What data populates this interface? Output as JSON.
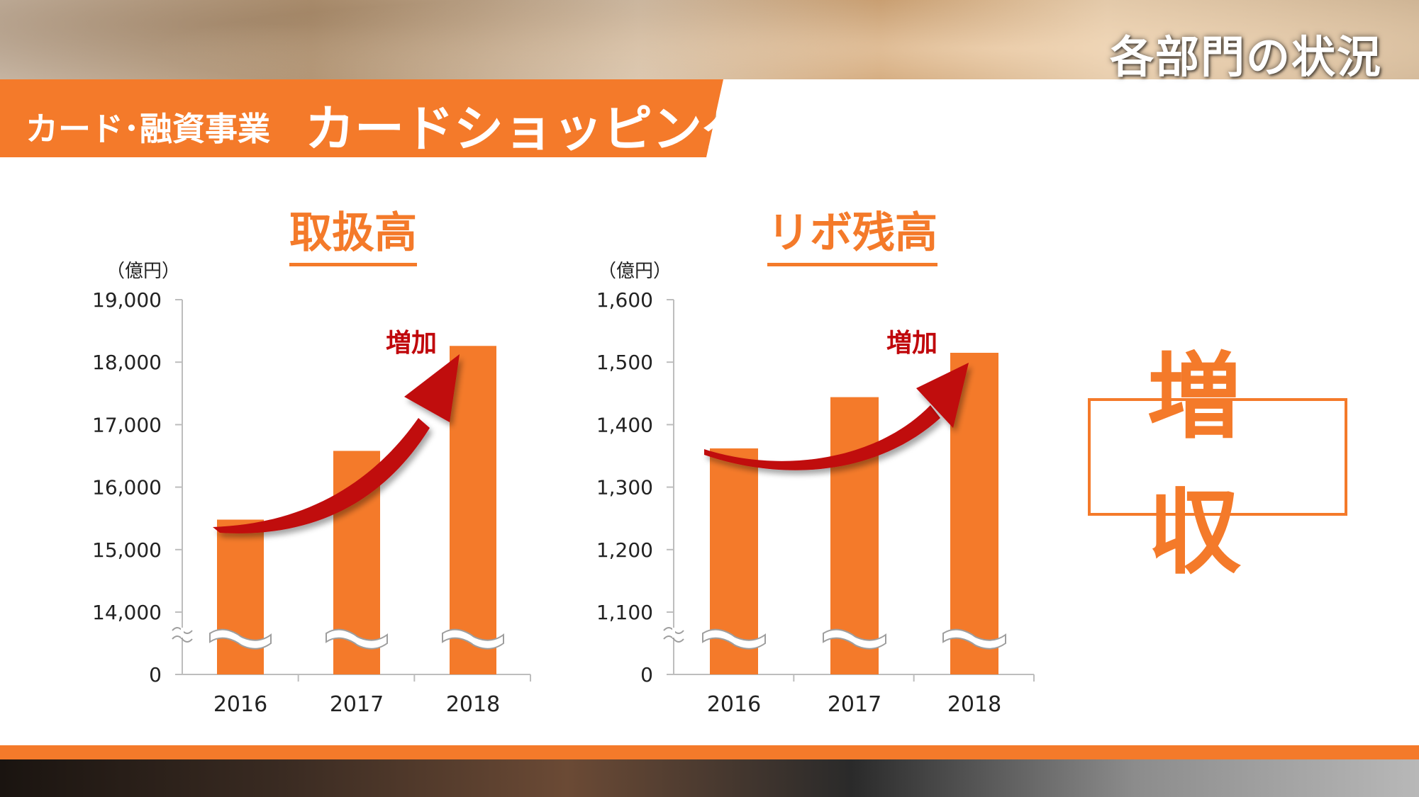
{
  "header": {
    "section_title": "各部門の状況",
    "banner_sub": "カード･融資事業",
    "banner_main": "カードショッピング"
  },
  "badge": {
    "text": "増収"
  },
  "colors": {
    "accent": "#f47a2a",
    "arrow": "#c0070b",
    "annotation": "#c0070b"
  },
  "chart_data": [
    {
      "type": "bar",
      "title": "取扱高",
      "unit_label": "（億円）",
      "categories": [
        "2016",
        "2017",
        "2018"
      ],
      "values": [
        15480,
        16580,
        18260
      ],
      "ylim": [
        14000,
        19000
      ],
      "yticks": [
        {
          "value": 14000,
          "label": "14,000"
        },
        {
          "value": 15000,
          "label": "15,000"
        },
        {
          "value": 16000,
          "label": "16,000"
        },
        {
          "value": 17000,
          "label": "17,000"
        },
        {
          "value": 18000,
          "label": "18,000"
        },
        {
          "value": 19000,
          "label": "19,000"
        }
      ],
      "axis_break": true,
      "zero_label": "0",
      "grid": false,
      "annotation": "増加"
    },
    {
      "type": "bar",
      "title": "リボ残高",
      "unit_label": "（億円）",
      "categories": [
        "2016",
        "2017",
        "2018"
      ],
      "values": [
        1362,
        1444,
        1515
      ],
      "ylim": [
        1100,
        1600
      ],
      "yticks": [
        {
          "value": 1100,
          "label": "1,100"
        },
        {
          "value": 1200,
          "label": "1,200"
        },
        {
          "value": 1300,
          "label": "1,300"
        },
        {
          "value": 1400,
          "label": "1,400"
        },
        {
          "value": 1500,
          "label": "1,500"
        },
        {
          "value": 1600,
          "label": "1,600"
        }
      ],
      "axis_break": true,
      "zero_label": "0",
      "grid": false,
      "annotation": "増加"
    }
  ]
}
